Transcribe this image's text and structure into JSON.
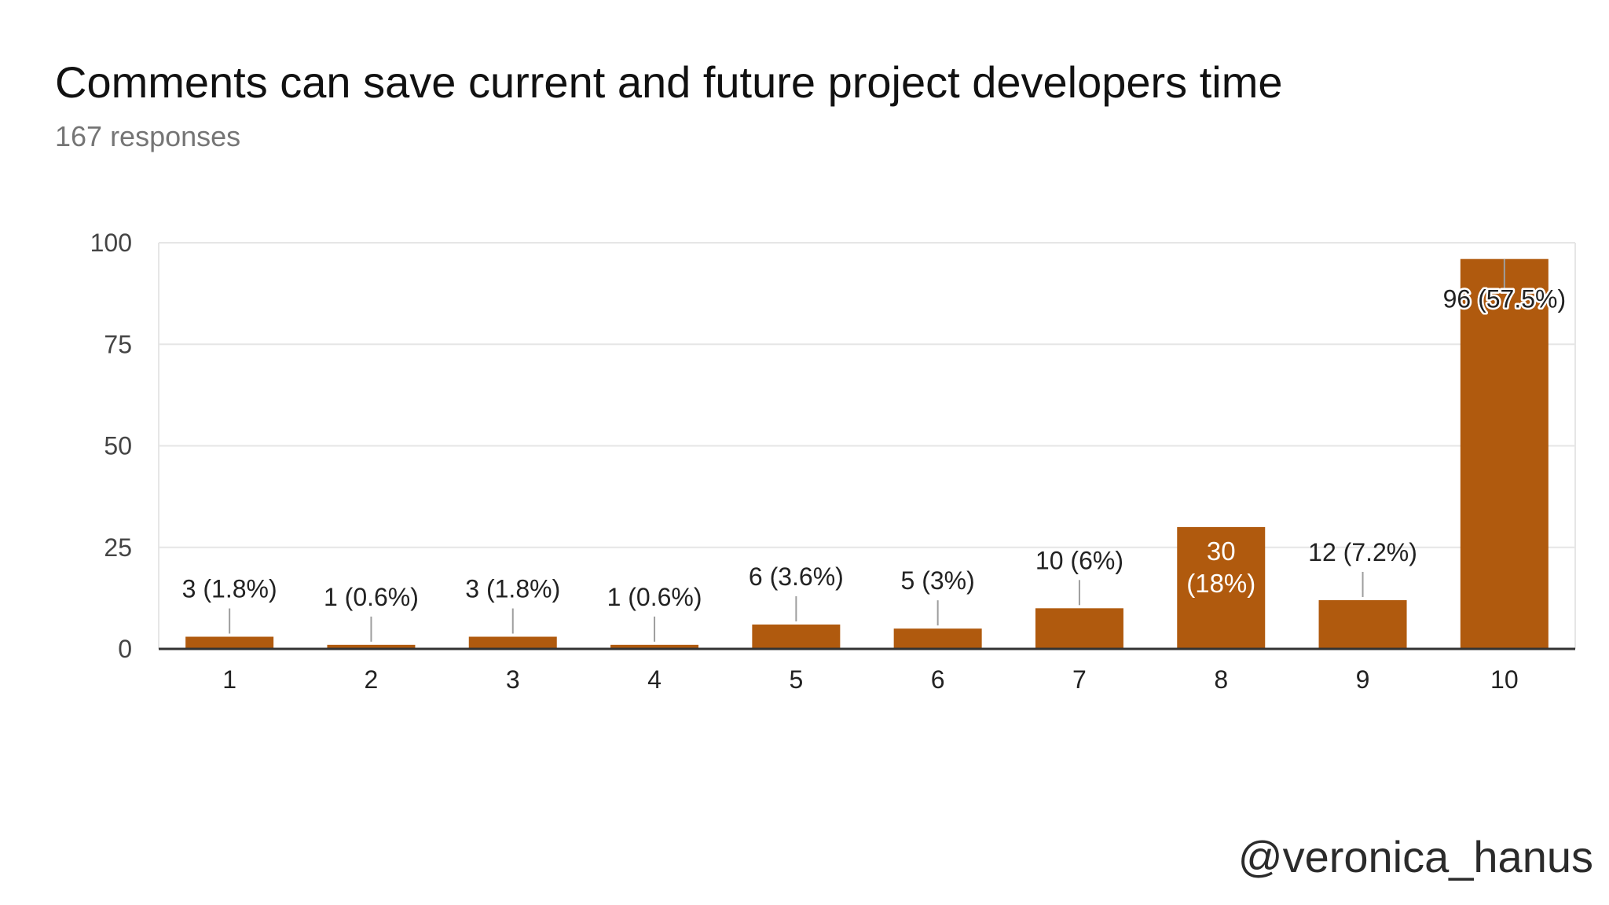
{
  "header": {
    "title": "Comments can save current and future project developers time",
    "subtitle": "167 responses"
  },
  "watermark": {
    "handle": "@veronica_hanus"
  },
  "colors": {
    "bar": "#B05A0E",
    "grid": "#E6E6E6",
    "axis": "#333333",
    "leader": "#9E9E9E",
    "label": "#222222",
    "label_inside": "#FFFFFF"
  },
  "chart_data": {
    "type": "bar",
    "title": "Comments can save current and future project developers time",
    "subtitle": "167 responses",
    "xlabel": "",
    "ylabel": "",
    "categories": [
      "1",
      "2",
      "3",
      "4",
      "5",
      "6",
      "7",
      "8",
      "9",
      "10"
    ],
    "values": [
      3,
      1,
      3,
      1,
      6,
      5,
      10,
      30,
      12,
      96
    ],
    "data_labels": [
      "3 (1.8%)",
      "1 (0.6%)",
      "3 (1.8%)",
      "1 (0.6%)",
      "6 (3.6%)",
      "5 (3%)",
      "10 (6%)",
      "30\n(18%)",
      "12 (7.2%)",
      "96 (57.5%)"
    ],
    "ylim": [
      0,
      100
    ],
    "yticks": [
      0,
      25,
      50,
      75,
      100
    ],
    "grid": true,
    "legend": "none"
  }
}
